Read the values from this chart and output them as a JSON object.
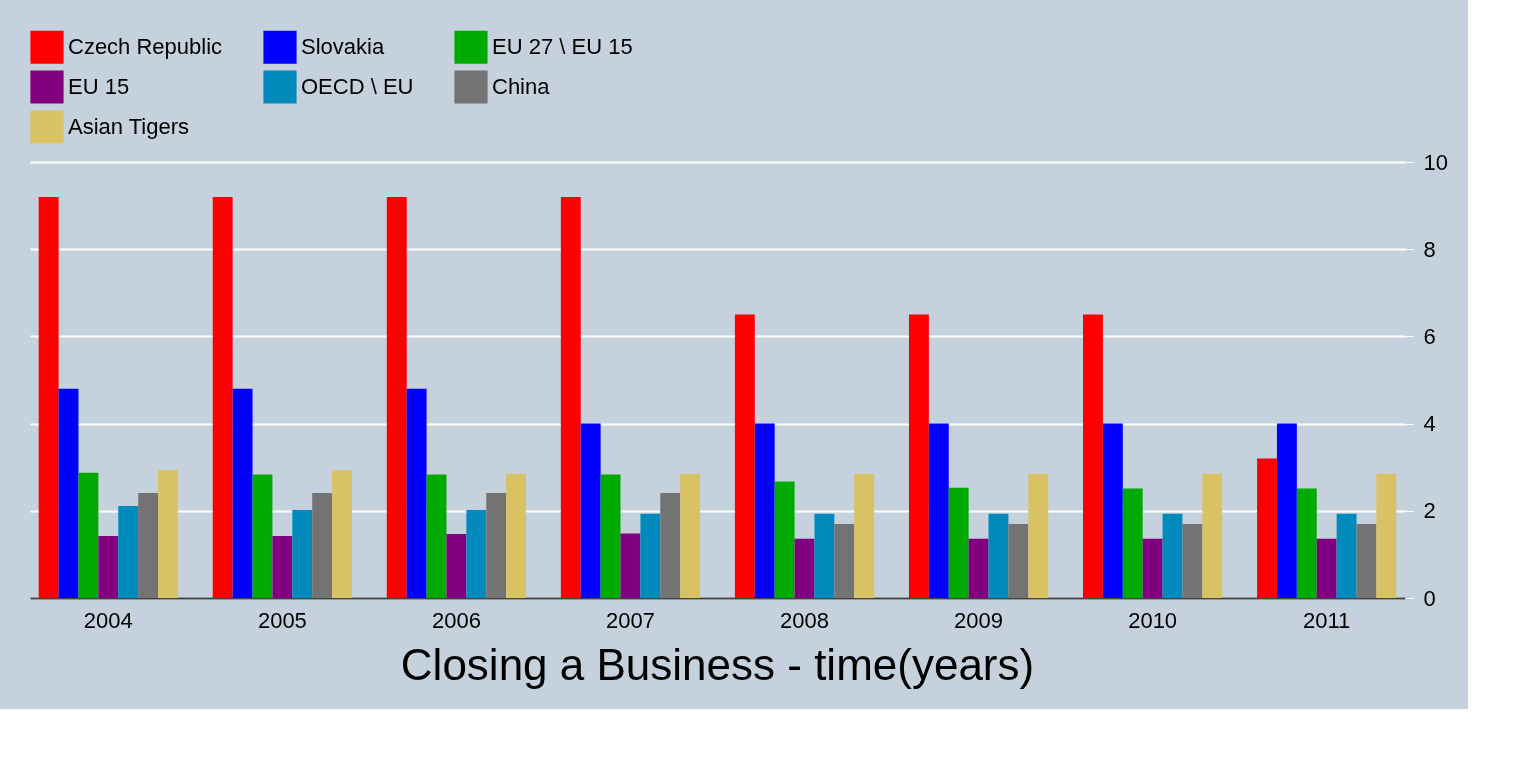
{
  "chart_data": {
    "type": "bar",
    "title": "Closing a Business - time(years)",
    "categories": [
      "2004",
      "2005",
      "2006",
      "2007",
      "2008",
      "2009",
      "2010",
      "2011"
    ],
    "series": [
      {
        "name": "Czech Republic",
        "color": "#ff0000",
        "values": [
          9.2,
          9.2,
          9.2,
          9.2,
          6.5,
          6.5,
          6.5,
          3.2
        ]
      },
      {
        "name": "Slovakia",
        "color": "#0000ff",
        "values": [
          4.8,
          4.8,
          4.8,
          4.0,
          4.0,
          4.0,
          4.0,
          4.0
        ]
      },
      {
        "name": "EU 27 \\ EU 15",
        "color": "#00aa00",
        "values": [
          2.87,
          2.83,
          2.83,
          2.83,
          2.67,
          2.53,
          2.51,
          2.51
        ]
      },
      {
        "name": "EU 15",
        "color": "#800080",
        "values": [
          1.42,
          1.42,
          1.47,
          1.48,
          1.36,
          1.36,
          1.36,
          1.36
        ]
      },
      {
        "name": "OECD \\ EU",
        "color": "#008bbc",
        "values": [
          2.11,
          2.02,
          2.02,
          1.93,
          1.93,
          1.93,
          1.93,
          1.93
        ]
      },
      {
        "name": "China",
        "color": "#737373",
        "values": [
          2.41,
          2.41,
          2.41,
          2.41,
          1.7,
          1.7,
          1.7,
          1.7
        ]
      },
      {
        "name": "Asian Tigers",
        "color": "#d9c264",
        "values": [
          2.93,
          2.93,
          2.85,
          2.85,
          2.85,
          2.85,
          2.85,
          2.85
        ]
      }
    ],
    "ylim": [
      0,
      10
    ],
    "yticks": [
      0,
      2,
      4,
      6,
      8,
      10
    ],
    "grid": "y",
    "legend": "top"
  }
}
